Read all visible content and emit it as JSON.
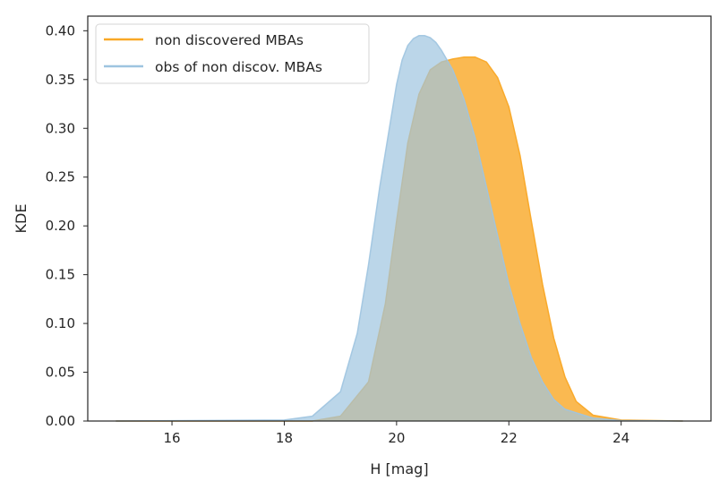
{
  "chart_data": {
    "type": "area",
    "title": "",
    "xlabel": "H [mag]",
    "ylabel": "KDE",
    "xlim": [
      14.5,
      25.6
    ],
    "ylim": [
      0,
      0.415
    ],
    "xticks": [
      16,
      18,
      20,
      22,
      24
    ],
    "xtick_labels": [
      "16",
      "18",
      "20",
      "22",
      "24"
    ],
    "yticks": [
      0.0,
      0.05,
      0.1,
      0.15,
      0.2,
      0.25,
      0.3,
      0.35,
      0.4
    ],
    "ytick_labels": [
      "0.00",
      "0.05",
      "0.10",
      "0.15",
      "0.20",
      "0.25",
      "0.30",
      "0.35",
      "0.40"
    ],
    "grid": false,
    "legend_position": "top-left",
    "series": [
      {
        "name": "non discovered MBAs",
        "color": "#f9a826",
        "x": [
          15,
          18.5,
          19.0,
          19.5,
          19.8,
          20.0,
          20.2,
          20.4,
          20.6,
          20.8,
          21.0,
          21.2,
          21.4,
          21.6,
          21.8,
          22.0,
          22.2,
          22.4,
          22.6,
          22.8,
          23.0,
          23.2,
          23.5,
          24.0,
          25.1
        ],
        "y": [
          0.0,
          0.0,
          0.005,
          0.04,
          0.12,
          0.205,
          0.285,
          0.335,
          0.36,
          0.368,
          0.371,
          0.373,
          0.373,
          0.368,
          0.352,
          0.322,
          0.272,
          0.205,
          0.14,
          0.085,
          0.045,
          0.02,
          0.006,
          0.001,
          0.0
        ]
      },
      {
        "name": "obs of non discov. MBAs",
        "color": "#9ec4e0",
        "x": [
          15,
          18.0,
          18.5,
          19.0,
          19.3,
          19.5,
          19.7,
          19.9,
          20.0,
          20.1,
          20.2,
          20.3,
          20.4,
          20.5,
          20.6,
          20.7,
          20.8,
          21.0,
          21.2,
          21.4,
          21.6,
          21.8,
          22.0,
          22.2,
          22.4,
          22.6,
          22.8,
          23.0,
          23.5,
          24.0,
          25.1
        ],
        "y": [
          0.0,
          0.001,
          0.005,
          0.03,
          0.09,
          0.16,
          0.24,
          0.31,
          0.345,
          0.37,
          0.385,
          0.392,
          0.395,
          0.395,
          0.393,
          0.388,
          0.38,
          0.36,
          0.33,
          0.29,
          0.24,
          0.19,
          0.14,
          0.1,
          0.065,
          0.04,
          0.022,
          0.012,
          0.003,
          0.0005,
          0.0
        ]
      }
    ]
  }
}
